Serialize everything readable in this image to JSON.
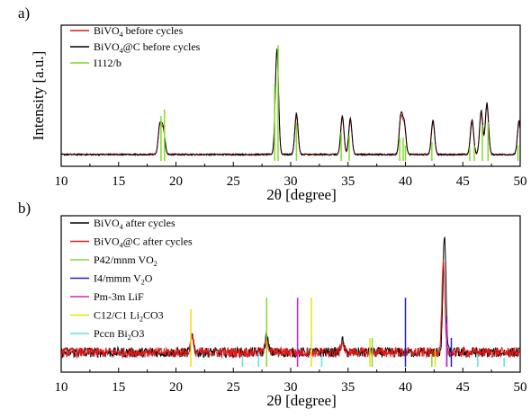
{
  "chart_data": [
    {
      "panel": "a)",
      "type": "line",
      "xlabel": "2θ [degree]",
      "ylabel": "Intensity [a.u.]",
      "xlim": [
        10,
        50
      ],
      "xticks": [
        "10",
        "15",
        "20",
        "25",
        "30",
        "35",
        "40",
        "45",
        "50"
      ],
      "legend_position": "top-left",
      "series": [
        {
          "name": "BiVO4 before cycles",
          "label_main": "BiVO",
          "label_sub": "4",
          "label_rest": " before cycles",
          "color": "#e31a1c",
          "peaks": [
            [
              18.6,
              0.22
            ],
            [
              18.9,
              0.18
            ],
            [
              28.8,
              0.8
            ],
            [
              30.5,
              0.3
            ],
            [
              34.5,
              0.28
            ],
            [
              35.2,
              0.26
            ],
            [
              39.6,
              0.28
            ],
            [
              39.9,
              0.22
            ],
            [
              42.4,
              0.25
            ],
            [
              45.8,
              0.25
            ],
            [
              46.6,
              0.32
            ],
            [
              47.1,
              0.38
            ],
            [
              49.9,
              0.24
            ]
          ],
          "baseline": 0.05
        },
        {
          "name": "BiVO4@C before cycles",
          "label_main": "BiVO",
          "label_sub": "4",
          "label_rest": "@C before cycles",
          "color": "#000000",
          "peaks": [
            [
              18.6,
              0.23
            ],
            [
              18.9,
              0.2
            ],
            [
              28.8,
              0.82
            ],
            [
              30.5,
              0.32
            ],
            [
              34.5,
              0.3
            ],
            [
              35.2,
              0.28
            ],
            [
              39.6,
              0.3
            ],
            [
              39.9,
              0.24
            ],
            [
              42.4,
              0.27
            ],
            [
              45.8,
              0.27
            ],
            [
              46.6,
              0.34
            ],
            [
              47.1,
              0.4
            ],
            [
              49.9,
              0.26
            ]
          ],
          "baseline": 0.05
        },
        {
          "name": "I112/b",
          "label_main": "I112/b",
          "label_sub": "",
          "label_rest": "",
          "color": "#7fdc2b",
          "sticks": [
            [
              18.7,
              0.35
            ],
            [
              19.0,
              0.4
            ],
            [
              28.6,
              0.6
            ],
            [
              28.9,
              0.9
            ],
            [
              30.5,
              0.3
            ],
            [
              34.4,
              0.22
            ],
            [
              35.1,
              0.2
            ],
            [
              39.5,
              0.18
            ],
            [
              39.8,
              0.18
            ],
            [
              40.0,
              0.12
            ],
            [
              42.3,
              0.15
            ],
            [
              45.6,
              0.1
            ],
            [
              46.0,
              0.12
            ],
            [
              46.7,
              0.28
            ],
            [
              47.2,
              0.3
            ],
            [
              49.8,
              0.12
            ]
          ]
        }
      ]
    },
    {
      "panel": "b)",
      "type": "line",
      "xlabel": "2θ [degree]",
      "ylabel": "Intensity [a.u.]",
      "xlim": [
        10,
        50
      ],
      "xticks": [
        "10",
        "15",
        "20",
        "25",
        "30",
        "35",
        "40",
        "45",
        "50"
      ],
      "legend_position": "top-left",
      "series": [
        {
          "name": "BiVO4 after cycles",
          "label_main": "BiVO",
          "label_sub": "4",
          "label_rest": " after cycles",
          "color": "#000000",
          "peaks": [
            [
              21.4,
              0.1
            ],
            [
              27.9,
              0.12
            ],
            [
              34.5,
              0.08
            ],
            [
              43.4,
              0.82
            ]
          ],
          "baseline": 0.1
        },
        {
          "name": "BiVO4@C after cycles",
          "label_main": "BiVO",
          "label_sub": "4",
          "label_rest": "@C after cycles",
          "color": "#e31a1c",
          "peaks": [
            [
              21.4,
              0.12
            ],
            [
              27.9,
              0.1
            ],
            [
              34.5,
              0.07
            ],
            [
              43.3,
              0.62
            ]
          ],
          "baseline": 0.1
        },
        {
          "name": "P42/mnm VO2",
          "label_main": "P42/mnm VO",
          "label_sub": "2",
          "label_rest": "",
          "color": "#7fdc2b",
          "sticks": [
            [
              27.9,
              0.48
            ],
            [
              37.1,
              0.2
            ],
            [
              42.3,
              0.08
            ]
          ]
        },
        {
          "name": "I4/mmm V2O",
          "label_main": "I4/mmm V",
          "label_sub": "2",
          "label_rest": "O",
          "color": "#2020c0",
          "sticks": [
            [
              40.0,
              0.48
            ],
            [
              43.6,
              0.35
            ],
            [
              44.0,
              0.2
            ]
          ]
        },
        {
          "name": "Pm-3m LiF",
          "label_main": "Pm-3m LiF",
          "label_sub": "",
          "label_rest": "",
          "color": "#d020d0",
          "sticks": [
            [
              30.6,
              0.48
            ],
            [
              43.6,
              0.3
            ]
          ]
        },
        {
          "name": "C12/C1 Li2CO3",
          "label_main": "C12/C1 Li",
          "label_sub": "2",
          "label_rest": "CO3",
          "color": "#e8e010",
          "sticks": [
            [
              21.3,
              0.4
            ],
            [
              31.8,
              0.48
            ],
            [
              36.9,
              0.2
            ],
            [
              42.6,
              0.12
            ]
          ]
        },
        {
          "name": "Pccn Bi2O3",
          "label_main": "Pccn Bi",
          "label_sub": "2",
          "label_rest": "O3",
          "color": "#5fe0e0",
          "sticks": [
            [
              25.8,
              0.08
            ],
            [
              27.2,
              0.1
            ],
            [
              32.7,
              0.08
            ],
            [
              46.3,
              0.08
            ],
            [
              48.6,
              0.06
            ]
          ]
        }
      ]
    }
  ]
}
